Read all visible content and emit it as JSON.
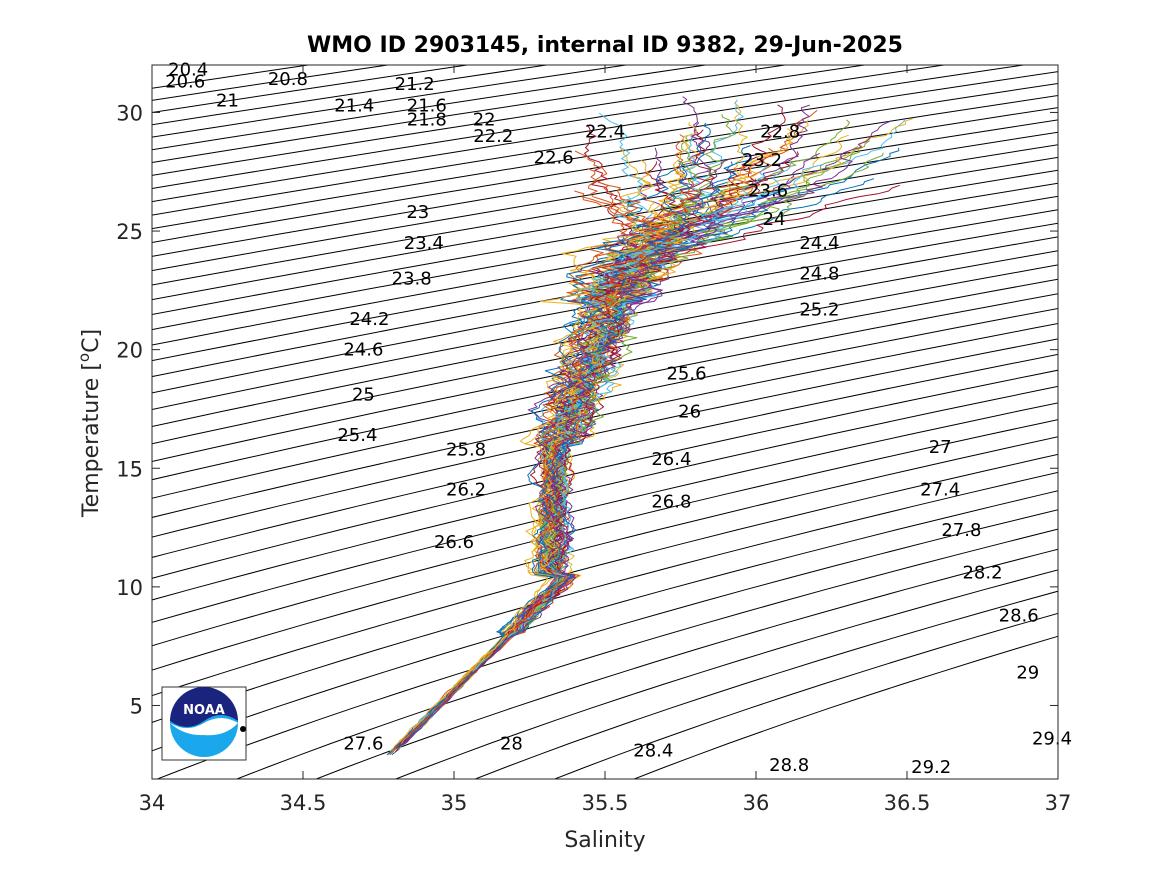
{
  "chart_data": {
    "type": "line",
    "title": "WMO ID 2903145, internal ID 9382, 29-Jun-2025",
    "xlabel": "Salinity",
    "ylabel_main": "Temperature [",
    "ylabel_sup": "o",
    "ylabel_tail": "C]",
    "xlim": [
      34,
      37
    ],
    "ylim": [
      1.9,
      32
    ],
    "x_ticks": [
      "34",
      "34.5",
      "35",
      "35.5",
      "36",
      "36.5",
      "37"
    ],
    "y_ticks": [
      "5",
      "10",
      "15",
      "20",
      "25",
      "30"
    ],
    "isopycnals": {
      "contour_min": 20.4,
      "contour_max": 29.6,
      "contour_step": 0.2,
      "labels": [
        {
          "text": "20.4",
          "s": 34.12,
          "t": 31.8
        },
        {
          "text": "20.6",
          "s": 34.11,
          "t": 31.3
        },
        {
          "text": "20.8",
          "s": 34.45,
          "t": 31.4
        },
        {
          "text": "21",
          "s": 34.25,
          "t": 30.5
        },
        {
          "text": "21.2",
          "s": 34.87,
          "t": 31.2
        },
        {
          "text": "21.4",
          "s": 34.67,
          "t": 30.3
        },
        {
          "text": "21.6",
          "s": 34.91,
          "t": 30.3
        },
        {
          "text": "21.8",
          "s": 34.91,
          "t": 29.7
        },
        {
          "text": "22",
          "s": 35.1,
          "t": 29.7
        },
        {
          "text": "22.2",
          "s": 35.13,
          "t": 29.0
        },
        {
          "text": "22.4",
          "s": 35.5,
          "t": 29.2
        },
        {
          "text": "22.6",
          "s": 35.33,
          "t": 28.1
        },
        {
          "text": "22.8",
          "s": 36.08,
          "t": 29.2
        },
        {
          "text": "23",
          "s": 34.88,
          "t": 25.8
        },
        {
          "text": "23.2",
          "s": 36.02,
          "t": 28.0
        },
        {
          "text": "23.4",
          "s": 34.9,
          "t": 24.5
        },
        {
          "text": "23.6",
          "s": 36.04,
          "t": 26.7
        },
        {
          "text": "23.8",
          "s": 34.86,
          "t": 23.0
        },
        {
          "text": "24",
          "s": 36.06,
          "t": 25.5
        },
        {
          "text": "24.2",
          "s": 34.72,
          "t": 21.3
        },
        {
          "text": "24.4",
          "s": 36.21,
          "t": 24.5
        },
        {
          "text": "24.6",
          "s": 34.7,
          "t": 20.0
        },
        {
          "text": "24.8",
          "s": 36.21,
          "t": 23.2
        },
        {
          "text": "25",
          "s": 34.7,
          "t": 18.1
        },
        {
          "text": "25.2",
          "s": 36.21,
          "t": 21.7
        },
        {
          "text": "25.4",
          "s": 34.68,
          "t": 16.4
        },
        {
          "text": "25.6",
          "s": 35.77,
          "t": 19.0
        },
        {
          "text": "25.8",
          "s": 35.04,
          "t": 15.8
        },
        {
          "text": "26",
          "s": 35.78,
          "t": 17.4
        },
        {
          "text": "26.2",
          "s": 35.04,
          "t": 14.1
        },
        {
          "text": "26.4",
          "s": 35.72,
          "t": 15.4
        },
        {
          "text": "26.6",
          "s": 35.0,
          "t": 11.9
        },
        {
          "text": "26.8",
          "s": 35.72,
          "t": 13.6
        },
        {
          "text": "27",
          "s": 36.61,
          "t": 15.9
        },
        {
          "text": "27.4",
          "s": 36.61,
          "t": 14.1
        },
        {
          "text": "27.6",
          "s": 34.7,
          "t": 3.4
        },
        {
          "text": "27.8",
          "s": 36.68,
          "t": 12.4
        },
        {
          "text": "28",
          "s": 35.19,
          "t": 3.4
        },
        {
          "text": "28.2",
          "s": 36.75,
          "t": 10.6
        },
        {
          "text": "28.4",
          "s": 35.66,
          "t": 3.1
        },
        {
          "text": "28.6",
          "s": 36.87,
          "t": 8.8
        },
        {
          "text": "28.8",
          "s": 36.11,
          "t": 2.5
        },
        {
          "text": "29",
          "s": 36.9,
          "t": 6.4
        },
        {
          "text": "29.2",
          "s": 36.58,
          "t": 2.4
        },
        {
          "text": "29.4",
          "s": 36.98,
          "t": 3.6
        }
      ]
    },
    "profile_count": 60,
    "profile_colors": [
      "#0072BD",
      "#D95319",
      "#EDB120",
      "#7E2F8E",
      "#77AC30",
      "#4DBEEE",
      "#A2142F"
    ],
    "logo": {
      "text": "NOAA"
    }
  }
}
